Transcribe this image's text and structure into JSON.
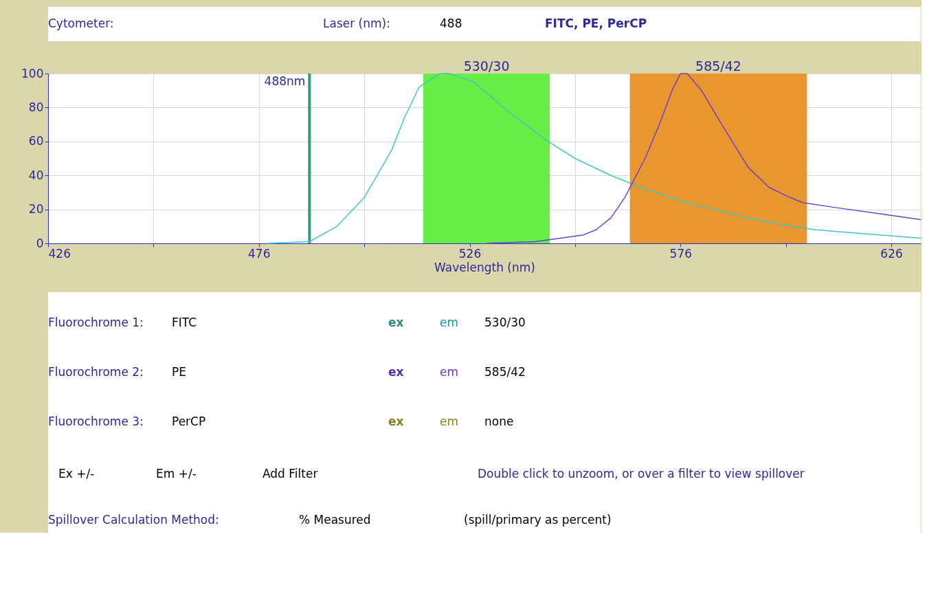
{
  "chart_data": [
    {
      "type": "other",
      "annotations": [
        "Cytometer:",
        "Laser (nm):",
        "488",
        "FITC, PE, PerCP"
      ]
    },
    {
      "type": "line",
      "xlabel": "Wavelength (nm)",
      "xlim": [
        426,
        633
      ],
      "ylim": [
        0,
        100
      ],
      "xticks": [
        426,
        {
          "value": 451,
          "label": null
        },
        476,
        {
          "value": 501,
          "label": null
        },
        526,
        {
          "value": 551,
          "label": null
        },
        576,
        {
          "value": 601,
          "label": null
        },
        626
      ],
      "yticks": [
        0,
        20,
        40,
        60,
        80,
        100
      ],
      "grid": true,
      "marker": "none",
      "line_style": "solid",
      "series": [
        {
          "color": "#40c8c0",
          "x": [
            478,
            488,
            494.5,
            501,
            507.5,
            510.7,
            514,
            519,
            521,
            527,
            535,
            544,
            551,
            559.5,
            567.6,
            576,
            584,
            592,
            600,
            608,
            618,
            633
          ],
          "values": [
            0,
            1,
            10,
            27,
            55,
            75,
            92,
            100,
            100,
            95,
            78,
            61,
            50,
            40,
            32,
            25,
            20,
            15,
            11,
            8,
            6,
            3
          ]
        },
        {
          "color": "#7040d0",
          "x": [
            530,
            541.6,
            553,
            556,
            559.5,
            562.8,
            567.6,
            571,
            574,
            576,
            577.6,
            581,
            585.8,
            589,
            592,
            597,
            602,
            605,
            613,
            624.5,
            633
          ],
          "values": [
            0,
            1,
            5,
            8,
            15,
            27,
            50,
            70,
            90,
            100,
            100,
            90,
            70,
            57,
            45,
            33,
            27,
            24,
            21,
            17,
            14
          ]
        }
      ],
      "bands": [
        {
          "axis": "x",
          "from": 515,
          "to": 545,
          "label": "530/30",
          "color": "#66ee44"
        },
        {
          "axis": "x",
          "from": 564,
          "to": 606,
          "label": "585/42",
          "color": "#e8962e"
        }
      ],
      "ref_lines": [
        {
          "axis": "x",
          "value": 488,
          "label": "488nm",
          "color": "#339977"
        }
      ]
    },
    {
      "type": "other",
      "annotations": [
        "Fluorochrome 1:",
        "FITC",
        "ex",
        "em",
        "530/30",
        "Fluorochrome 2:",
        "PE",
        "ex",
        "em",
        "585/42",
        "Fluorochrome 3:",
        "PerCP",
        "ex",
        "em",
        "none",
        "Ex +/-",
        "Em +/-",
        "Add Filter",
        "Double click to unzoom, or over a filter to view spillover",
        "Spillover Calculation Method:",
        "% Measured",
        "(spill/primary as percent)"
      ]
    }
  ]
}
